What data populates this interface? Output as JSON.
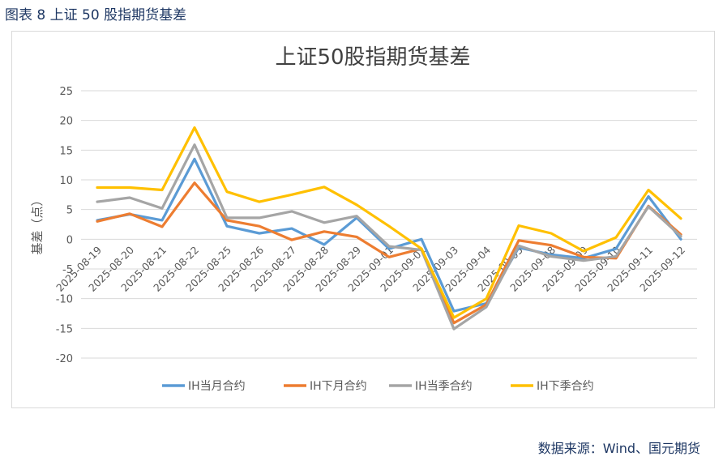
{
  "figure_caption": "图表 8 上证 50 股指期货基差",
  "source_note": "数据来源：Wind、国元期货",
  "chart_data": {
    "type": "line",
    "title": "上证50股指期货基差",
    "xlabel": "",
    "ylabel": "基差（点）",
    "ylim": [
      -20,
      25
    ],
    "yticks": [
      -20,
      -15,
      -10,
      -5,
      0,
      5,
      10,
      15,
      20,
      25
    ],
    "grid": true,
    "legend_position": "bottom",
    "categories": [
      "2025-08-19",
      "2025-08-20",
      "2025-08-21",
      "2025-08-22",
      "2025-08-25",
      "2025-08-26",
      "2025-08-27",
      "2025-08-28",
      "2025-08-29",
      "2025-09-01",
      "2025-09-02",
      "2025-09-03",
      "2025-09-04",
      "2025-09-05",
      "2025-09-08",
      "2025-09-09",
      "2025-09-10",
      "2025-09-11",
      "2025-09-12"
    ],
    "series": [
      {
        "name": "IH当月合约",
        "color": "#5b9bd5",
        "values": [
          3.2,
          4.2,
          3.2,
          13.5,
          2.2,
          1.0,
          1.8,
          -0.9,
          3.6,
          -1.6,
          0.0,
          -12.1,
          -10.8,
          -1.4,
          -2.6,
          -3.2,
          -1.6,
          7.2,
          0.0
        ]
      },
      {
        "name": "IH下月合约",
        "color": "#ed7d31",
        "values": [
          3.0,
          4.3,
          2.1,
          9.5,
          3.2,
          2.2,
          -0.1,
          1.3,
          0.4,
          -3.0,
          -1.6,
          -14.1,
          -11.0,
          -0.2,
          -1.0,
          -3.0,
          -3.2,
          5.6,
          0.8
        ]
      },
      {
        "name": "IH当季合约",
        "color": "#a5a5a5",
        "values": [
          6.3,
          7.0,
          5.2,
          15.9,
          3.6,
          3.6,
          4.7,
          2.8,
          3.9,
          -1.2,
          -1.8,
          -15.1,
          -11.4,
          -1.1,
          -2.9,
          -3.6,
          -2.9,
          5.5,
          0.5
        ]
      },
      {
        "name": "IH下季合约",
        "color": "#ffc000",
        "values": [
          8.7,
          8.7,
          8.3,
          18.8,
          8.0,
          6.3,
          7.5,
          8.8,
          5.8,
          2.2,
          -1.6,
          -13.2,
          -10.0,
          2.3,
          1.0,
          -2.0,
          0.3,
          8.3,
          3.5
        ]
      }
    ]
  }
}
